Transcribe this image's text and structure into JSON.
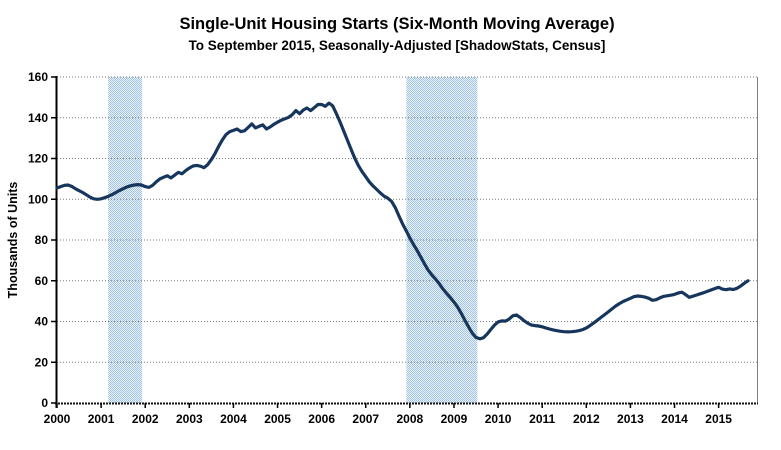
{
  "header": {
    "title": "Single-Unit Housing Starts (Six-Month Moving Average)",
    "subtitle": "To September 2015, Seasonally-Adjusted [ShadowStats, Census]"
  },
  "chart_data": {
    "type": "line",
    "title": "Single-Unit Housing Starts (Six-Month Moving Average)",
    "subtitle": "To September 2015, Seasonally-Adjusted [ShadowStats, Census]",
    "xlabel": "",
    "ylabel": "Thousands of Units",
    "ylim": [
      0,
      160
    ],
    "ytick_step": 20,
    "ytick_labels": [
      "0",
      "20",
      "40",
      "60",
      "80",
      "100",
      "120",
      "140",
      "160"
    ],
    "x_tick_labels": [
      "2000",
      "2001",
      "2002",
      "2003",
      "2004",
      "2005",
      "2006",
      "2007",
      "2008",
      "2009",
      "2010",
      "2011",
      "2012",
      "2013",
      "2014",
      "2015"
    ],
    "x_start_year": 2000,
    "x_axis_end_year": 2015.87,
    "points_per_year": 12,
    "grid": "horizontal-dotted",
    "legend_position": "none",
    "recession_bands": [
      {
        "start_year": 2001.16,
        "end_year": 2001.93
      },
      {
        "start_year": 2007.92,
        "end_year": 2009.53
      }
    ],
    "colors": {
      "line": "#17365d",
      "band_dot": "#9fc2e2",
      "band_bg": "#eef4fb",
      "grid": "#7a7a7a",
      "axis": "#000000",
      "right_border": "#808080"
    },
    "series": [
      {
        "name": "Single-unit housing starts, 6-month moving average (thousands of units, monthly, Jan 2000 - Sep 2015)",
        "monthly_values": [
          105.5,
          106.2,
          106.8,
          107.0,
          106.3,
          105.2,
          104.2,
          103.3,
          102.2,
          101.0,
          100.2,
          100.0,
          100.2,
          100.8,
          101.5,
          102.3,
          103.3,
          104.3,
          105.2,
          106.0,
          106.6,
          107.0,
          107.2,
          107.0,
          106.2,
          105.8,
          106.8,
          108.5,
          110.0,
          110.8,
          111.5,
          110.5,
          111.8,
          113.2,
          112.5,
          114.0,
          115.3,
          116.3,
          116.6,
          116.2,
          115.5,
          117.0,
          119.5,
          122.5,
          126.0,
          129.2,
          131.8,
          133.2,
          133.8,
          134.5,
          133.2,
          133.6,
          135.2,
          137.0,
          135.0,
          135.8,
          136.5,
          134.5,
          135.5,
          136.8,
          137.8,
          138.8,
          139.5,
          140.2,
          141.5,
          143.5,
          142.0,
          143.8,
          144.8,
          143.5,
          145.0,
          146.5,
          146.5,
          145.6,
          147.2,
          145.8,
          142.0,
          138.0,
          133.5,
          129.0,
          124.5,
          120.2,
          116.5,
          113.5,
          111.0,
          108.5,
          106.5,
          104.8,
          103.0,
          101.5,
          100.5,
          99.0,
          96.0,
          92.0,
          88.0,
          84.5,
          81.0,
          77.8,
          74.8,
          71.5,
          68.2,
          65.2,
          62.8,
          60.8,
          58.5,
          56.0,
          53.8,
          51.8,
          49.5,
          47.0,
          44.0,
          40.5,
          37.2,
          34.2,
          32.2,
          31.5,
          32.0,
          33.8,
          36.0,
          38.2,
          39.8,
          40.3,
          40.2,
          41.2,
          42.8,
          43.2,
          42.0,
          40.5,
          39.2,
          38.3,
          38.0,
          37.8,
          37.4,
          36.8,
          36.3,
          35.9,
          35.5,
          35.2,
          35.0,
          34.9,
          35.0,
          35.2,
          35.5,
          36.0,
          36.8,
          38.0,
          39.3,
          40.6,
          42.0,
          43.4,
          44.8,
          46.2,
          47.6,
          48.8,
          49.8,
          50.6,
          51.4,
          52.2,
          52.5,
          52.3,
          52.0,
          51.4,
          50.4,
          50.7,
          51.6,
          52.3,
          52.6,
          52.9,
          53.3,
          54.0,
          54.4,
          53.2,
          51.9,
          52.4,
          53.0,
          53.6,
          54.2,
          54.8,
          55.5,
          56.2,
          56.8,
          55.9,
          55.6,
          56.0,
          55.7,
          56.3,
          57.4,
          58.8,
          60.0
        ]
      }
    ]
  }
}
